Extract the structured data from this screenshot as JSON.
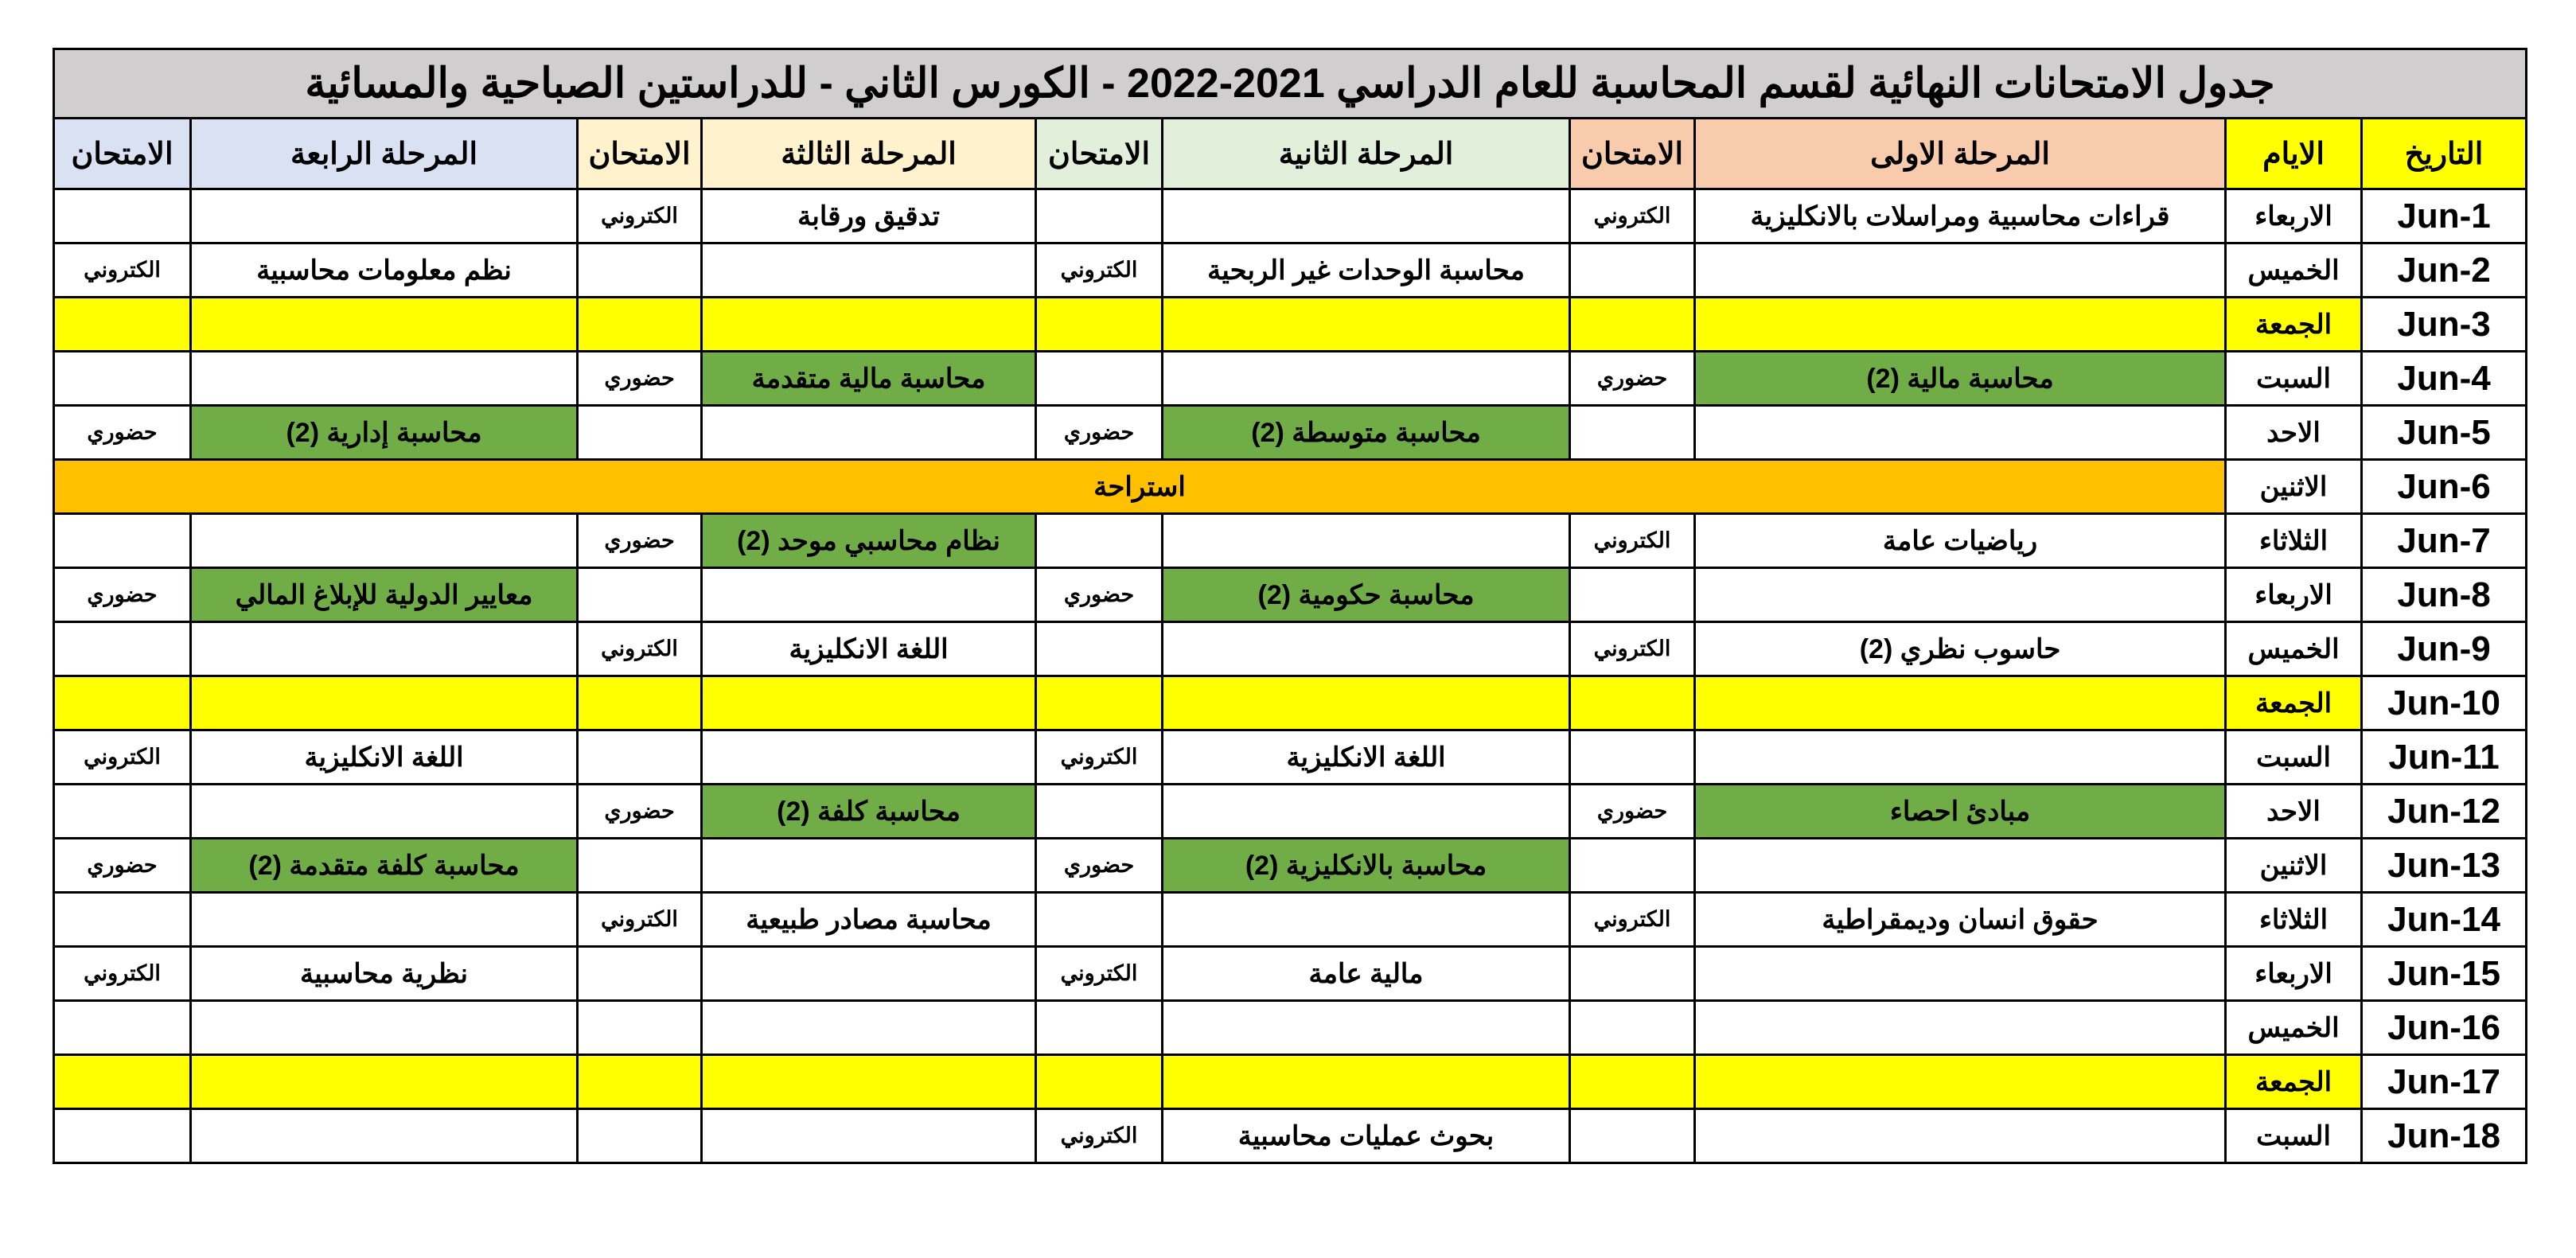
{
  "title": "جدول الامتحانات النهائية لقسم المحاسبة للعام الدراسي 2021-2022 - الكورس الثاني - للدراستين الصباحية والمسائية",
  "headers": {
    "date": "التاريخ",
    "day": "الايام",
    "stage1": "المرحلة الاولى",
    "stage2": "المرحلة الثانية",
    "stage3": "المرحلة الثالثة",
    "stage4": "المرحلة الرابعة",
    "exam": "الامتحان"
  },
  "colors": {
    "title_bg": "#D0CECE",
    "date_day_header": "#FFFF00",
    "stage1_header": "#F8CBAD",
    "stage2_header": "#E2EFDA",
    "stage3_header": "#FFF2CC",
    "stage4_header": "#D9E1F2",
    "in_person_cell": "#70AD47",
    "friday_row": "#FFFF00",
    "break_row": "#FFC000"
  },
  "rows": [
    {
      "date": "1-Jun",
      "day": "الاربعاء",
      "type": "normal",
      "cells": [
        "قراءات محاسبية ومراسلات بالانكليزية",
        "الكتروني",
        "",
        "",
        "تدقيق ورقابة",
        "الكتروني",
        "",
        ""
      ]
    },
    {
      "date": "2-Jun",
      "day": "الخميس",
      "type": "normal",
      "cells": [
        "",
        "",
        "محاسبة الوحدات غير الربحية",
        "الكتروني",
        "",
        "",
        "نظم معلومات محاسبية",
        "الكتروني"
      ]
    },
    {
      "date": "3-Jun",
      "day": "الجمعة",
      "type": "friday",
      "cells": [
        "",
        "",
        "",
        "",
        "",
        "",
        "",
        ""
      ]
    },
    {
      "date": "4-Jun",
      "day": "السبت",
      "type": "normal",
      "cells": [
        "محاسبة مالية (2)",
        "حضوري",
        "",
        "",
        "محاسبة مالية متقدمة",
        "حضوري",
        "",
        ""
      ]
    },
    {
      "date": "5-Jun",
      "day": "الاحد",
      "type": "normal",
      "cells": [
        "",
        "",
        "محاسبة متوسطة (2)",
        "حضوري",
        "",
        "",
        "محاسبة إدارية (2)",
        "حضوري"
      ]
    },
    {
      "date": "6-Jun",
      "day": "الاثنين",
      "type": "break",
      "label": "استراحة"
    },
    {
      "date": "7-Jun",
      "day": "الثلاثاء",
      "type": "normal",
      "cells": [
        "رياضيات عامة",
        "الكتروني",
        "",
        "",
        "نظام محاسبي موحد (2)",
        "حضوري",
        "",
        ""
      ]
    },
    {
      "date": "8-Jun",
      "day": "الاربعاء",
      "type": "normal",
      "cells": [
        "",
        "",
        "محاسبة حكومية (2)",
        "حضوري",
        "",
        "",
        "معايير الدولية للإبلاغ المالي",
        "حضوري"
      ]
    },
    {
      "date": "9-Jun",
      "day": "الخميس",
      "type": "normal",
      "cells": [
        "حاسوب نظري (2)",
        "الكتروني",
        "",
        "",
        "اللغة الانكليزية",
        "الكتروني",
        "",
        ""
      ]
    },
    {
      "date": "10-Jun",
      "day": "الجمعة",
      "type": "friday",
      "cells": [
        "",
        "",
        "",
        "",
        "",
        "",
        "",
        ""
      ]
    },
    {
      "date": "11-Jun",
      "day": "السبت",
      "type": "normal",
      "cells": [
        "",
        "",
        "اللغة الانكليزية",
        "الكتروني",
        "",
        "",
        "اللغة الانكليزية",
        "الكتروني"
      ]
    },
    {
      "date": "12-Jun",
      "day": "الاحد",
      "type": "normal",
      "cells": [
        "مبادئ احصاء",
        "حضوري",
        "",
        "",
        "محاسبة كلفة (2)",
        "حضوري",
        "",
        ""
      ]
    },
    {
      "date": "13-Jun",
      "day": "الاثنين",
      "type": "normal",
      "cells": [
        "",
        "",
        "محاسبة بالانكليزية (2)",
        "حضوري",
        "",
        "",
        "محاسبة كلفة متقدمة (2)",
        "حضوري"
      ]
    },
    {
      "date": "14-Jun",
      "day": "الثلاثاء",
      "type": "normal",
      "cells": [
        "حقوق انسان وديمقراطية",
        "الكتروني",
        "",
        "",
        "محاسبة مصادر طبيعية",
        "الكتروني",
        "",
        ""
      ]
    },
    {
      "date": "15-Jun",
      "day": "الاربعاء",
      "type": "normal",
      "cells": [
        "",
        "",
        "مالية عامة",
        "الكتروني",
        "",
        "",
        "نظرية محاسبية",
        "الكتروني"
      ]
    },
    {
      "date": "16-Jun",
      "day": "الخميس",
      "type": "normal",
      "cells": [
        "",
        "",
        "",
        "",
        "",
        "",
        "",
        ""
      ]
    },
    {
      "date": "17-Jun",
      "day": "الجمعة",
      "type": "friday",
      "cells": [
        "",
        "",
        "",
        "",
        "",
        "",
        "",
        ""
      ]
    },
    {
      "date": "18-Jun",
      "day": "السبت",
      "type": "normal",
      "cells": [
        "",
        "",
        "بحوث عمليات محاسبية",
        "الكتروني",
        "",
        "",
        "",
        ""
      ]
    }
  ]
}
